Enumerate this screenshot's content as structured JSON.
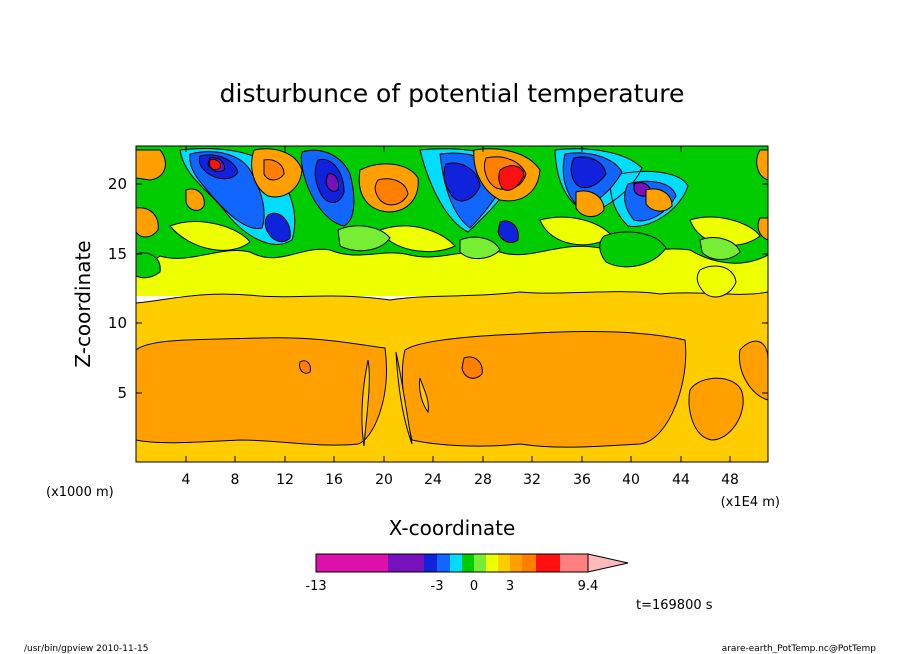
{
  "chart_data": {
    "type": "heatmap",
    "title": "disturbunce of potential temperature",
    "xlabel": "X-coordinate",
    "ylabel": "Z-coordinate",
    "x_unit_left": "(x1000 m)",
    "x_unit_right": "(x1E4 m)",
    "x_ticks": [
      "4",
      "8",
      "12",
      "16",
      "20",
      "24",
      "28",
      "32",
      "36",
      "40",
      "44",
      "48"
    ],
    "y_ticks": [
      "5",
      "10",
      "15",
      "20"
    ],
    "xlim": [
      0,
      51
    ],
    "ylim": [
      0,
      22.7
    ],
    "time_label": "t=169800 s",
    "colorbar": {
      "labels": [
        "-13",
        "-3",
        "0",
        "3",
        "9.4"
      ],
      "colors": [
        "#dd11aa",
        "#7711bb",
        "#1122dd",
        "#1166ff",
        "#00ddff",
        "#00cc00",
        "#77ee33",
        "#eeff00",
        "#ffcc00",
        "#ffa000",
        "#ff8000",
        "#ff1010",
        "#ff8080",
        "#ffbbbb"
      ]
    },
    "features": [
      {
        "region": "lower layer",
        "z_range": [
          0,
          9
        ],
        "value_class": "warm (orange)"
      },
      {
        "region": "mid layer",
        "z_range": [
          9,
          12.5
        ],
        "value_class": "light warm (gold)"
      },
      {
        "region": "upper layer",
        "z_range": [
          12.5,
          22.7
        ],
        "value_class": "alternating cells (blue/green/yellow/orange/red)"
      }
    ]
  },
  "footer": {
    "left": "/usr/bin/gpview   2010-11-15",
    "right": "arare-earth_PotTemp.nc@PotTemp"
  }
}
